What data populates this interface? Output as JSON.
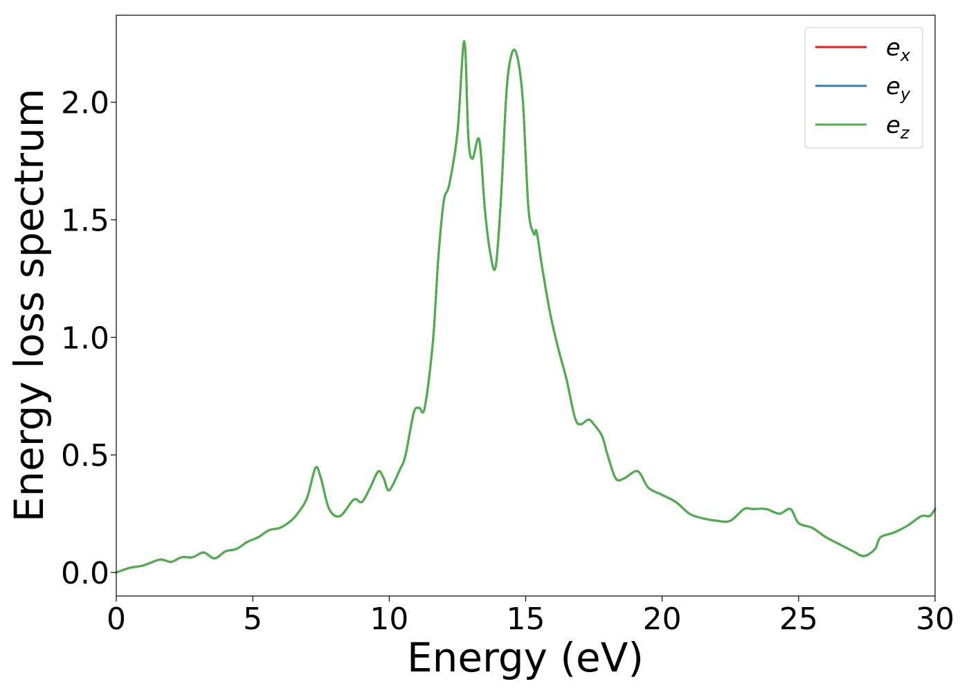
{
  "chart_data": {
    "type": "line",
    "title": "",
    "xlabel": "Energy (eV)",
    "ylabel": "Energy loss spectrum",
    "xlim": [
      0,
      30
    ],
    "ylim": [
      -0.1,
      2.37
    ],
    "xticks": [
      0,
      5,
      10,
      15,
      20,
      25,
      30
    ],
    "xtick_labels": [
      "0",
      "5",
      "10",
      "15",
      "20",
      "25",
      "30"
    ],
    "yticks": [
      0.0,
      0.5,
      1.0,
      1.5,
      2.0
    ],
    "ytick_labels": [
      "0.0",
      "0.5",
      "1.0",
      "1.5",
      "2.0"
    ],
    "grid": false,
    "legend_position": "upper right",
    "series": [
      {
        "name": "e",
        "subscript": "x",
        "color": "#e41a1c"
      },
      {
        "name": "e",
        "subscript": "y",
        "color": "#377eb8"
      },
      {
        "name": "e",
        "subscript": "z",
        "color": "#4daf4a"
      }
    ],
    "x": [
      0,
      0.5,
      1.0,
      1.6,
      2.0,
      2.4,
      2.8,
      3.2,
      3.6,
      4.0,
      4.4,
      4.8,
      5.2,
      5.6,
      6.0,
      6.4,
      6.7,
      7.0,
      7.3,
      7.5,
      7.8,
      8.2,
      8.7,
      9.0,
      9.3,
      9.6,
      9.8,
      10.0,
      10.4,
      10.6,
      10.9,
      11.1,
      11.3,
      11.6,
      11.8,
      12.0,
      12.2,
      12.5,
      12.75,
      12.9,
      13.05,
      13.3,
      13.5,
      13.7,
      13.9,
      14.1,
      14.3,
      14.5,
      14.7,
      14.9,
      15.1,
      15.3,
      15.4,
      15.6,
      15.9,
      16.2,
      16.5,
      16.8,
      17.0,
      17.3,
      17.5,
      17.8,
      18.0,
      18.3,
      18.6,
      19.0,
      19.2,
      19.5,
      20.0,
      20.5,
      21.0,
      21.5,
      22.0,
      22.5,
      23.0,
      23.3,
      23.8,
      24.3,
      24.7,
      25.0,
      25.5,
      26.0,
      26.5,
      27.0,
      27.4,
      27.8,
      28.0,
      28.5,
      29.0,
      29.5,
      29.8,
      30.0
    ],
    "values": [
      0.0,
      0.02,
      0.03,
      0.055,
      0.045,
      0.065,
      0.065,
      0.085,
      0.06,
      0.09,
      0.1,
      0.13,
      0.15,
      0.18,
      0.19,
      0.22,
      0.26,
      0.32,
      0.445,
      0.4,
      0.27,
      0.24,
      0.31,
      0.3,
      0.36,
      0.43,
      0.4,
      0.35,
      0.44,
      0.5,
      0.68,
      0.7,
      0.7,
      0.98,
      1.34,
      1.58,
      1.65,
      1.87,
      2.26,
      1.85,
      1.76,
      1.84,
      1.55,
      1.36,
      1.3,
      1.6,
      2.05,
      2.21,
      2.19,
      2.0,
      1.55,
      1.44,
      1.45,
      1.3,
      1.1,
      0.95,
      0.82,
      0.66,
      0.63,
      0.65,
      0.63,
      0.58,
      0.5,
      0.4,
      0.4,
      0.43,
      0.42,
      0.36,
      0.33,
      0.3,
      0.25,
      0.23,
      0.22,
      0.22,
      0.27,
      0.27,
      0.27,
      0.25,
      0.27,
      0.21,
      0.19,
      0.15,
      0.12,
      0.09,
      0.07,
      0.1,
      0.15,
      0.17,
      0.2,
      0.24,
      0.24,
      0.27
    ]
  }
}
